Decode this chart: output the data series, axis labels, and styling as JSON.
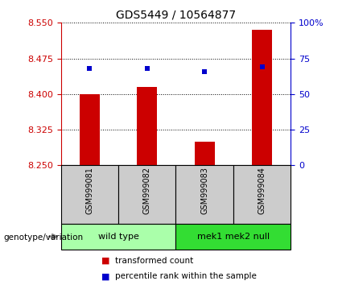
{
  "title": "GDS5449 / 10564877",
  "samples": [
    "GSM999081",
    "GSM999082",
    "GSM999083",
    "GSM999084"
  ],
  "transformed_counts": [
    8.4,
    8.415,
    8.3,
    8.535
  ],
  "percentile_ranks": [
    68,
    68,
    66,
    69
  ],
  "bar_bottom": 8.25,
  "ylim_left": [
    8.25,
    8.55
  ],
  "ylim_right": [
    0,
    100
  ],
  "yticks_left": [
    8.25,
    8.325,
    8.4,
    8.475,
    8.55
  ],
  "yticks_right": [
    0,
    25,
    50,
    75,
    100
  ],
  "ytick_labels_right": [
    "0",
    "25",
    "50",
    "75",
    "100%"
  ],
  "bar_color": "#cc0000",
  "square_color": "#0000cc",
  "groups": [
    {
      "label": "wild type",
      "indices": [
        0,
        1
      ],
      "color": "#aaffaa"
    },
    {
      "label": "mek1 mek2 null",
      "indices": [
        2,
        3
      ],
      "color": "#33dd33"
    }
  ],
  "genotype_label": "genotype/variation",
  "legend_items": [
    {
      "color": "#cc0000",
      "label": "transformed count"
    },
    {
      "color": "#0000cc",
      "label": "percentile rank within the sample"
    }
  ],
  "sample_box_color": "#cccccc",
  "bar_width": 0.35,
  "title_fontsize": 10,
  "tick_fontsize": 8,
  "label_fontsize": 8
}
